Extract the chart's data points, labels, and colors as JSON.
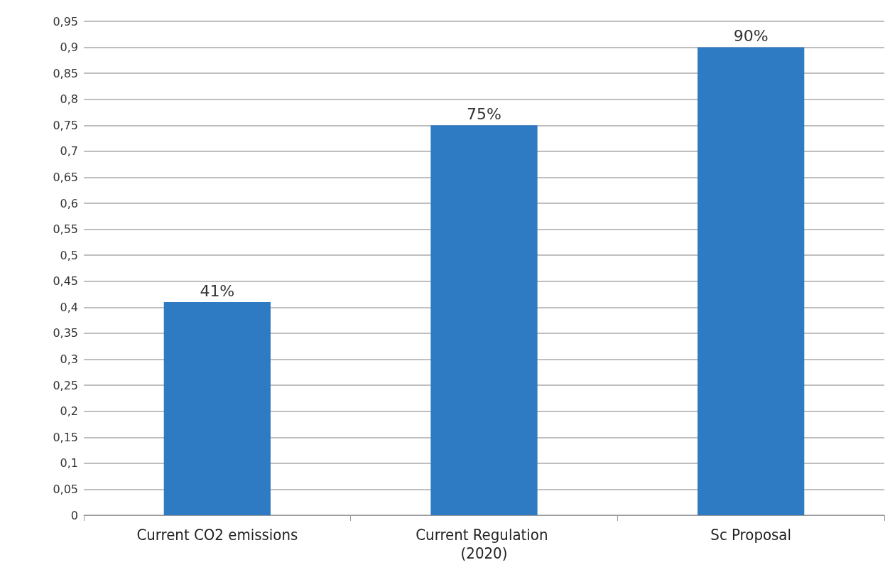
{
  "chart_data": {
    "type": "bar",
    "categories": [
      "Current CO2 emissions",
      "Current Regulation (2020)",
      "Sc Proposal"
    ],
    "values": [
      0.41,
      0.75,
      0.9
    ],
    "value_labels": [
      "41%",
      "75%",
      "90%"
    ],
    "color": "#2e7bc4",
    "ylim": [
      0,
      0.95
    ],
    "yticks": [
      0,
      {
        "value": 0.05,
        "label": "0,05"
      },
      {
        "value": 0.1,
        "label": "0,1"
      },
      {
        "value": 0.15,
        "label": "0,15"
      },
      {
        "value": 0.2,
        "label": "0,2"
      },
      {
        "value": 0.25,
        "label": "0,25"
      },
      {
        "value": 0.3,
        "label": "0,3"
      },
      {
        "value": 0.35,
        "label": "0,35"
      },
      {
        "value": 0.4,
        "label": "0,4"
      },
      {
        "value": 0.45,
        "label": "0,45"
      },
      {
        "value": 0.5,
        "label": "0,5"
      },
      {
        "value": 0.55,
        "label": "0,55"
      },
      {
        "value": 0.6,
        "label": "0,6"
      },
      {
        "value": 0.65,
        "label": "0,65"
      },
      {
        "value": 0.7,
        "label": "0,7"
      },
      {
        "value": 0.75,
        "label": "0,75"
      },
      {
        "value": 0.8,
        "label": "0,8"
      },
      {
        "value": 0.85,
        "label": "0,85"
      },
      {
        "value": 0.9,
        "label": "0,9"
      },
      {
        "value": 0.95,
        "label": "0,95"
      }
    ],
    "grid": "y"
  }
}
